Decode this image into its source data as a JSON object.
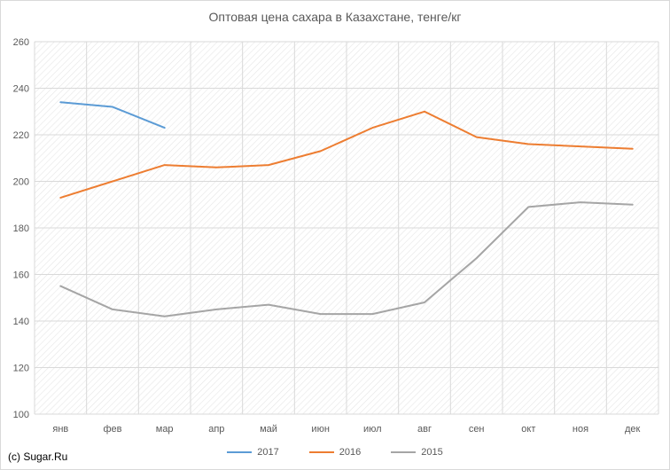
{
  "chart_data": {
    "type": "line",
    "title": "Оптовая цена сахара в Казахстане, тенге/кг",
    "categories": [
      "янв",
      "фев",
      "мар",
      "апр",
      "май",
      "июн",
      "июл",
      "авг",
      "сен",
      "окт",
      "ноя",
      "дек"
    ],
    "ylim": [
      100,
      260
    ],
    "yticks": [
      100,
      120,
      140,
      160,
      180,
      200,
      220,
      240,
      260
    ],
    "grid": true,
    "legend_position": "bottom",
    "series": [
      {
        "name": "2017",
        "color": "#5b9bd5",
        "values": [
          234,
          232,
          223,
          null,
          null,
          null,
          null,
          null,
          null,
          null,
          null,
          null
        ]
      },
      {
        "name": "2016",
        "color": "#ed7d31",
        "values": [
          193,
          200,
          207,
          206,
          207,
          213,
          223,
          230,
          219,
          216,
          215,
          214
        ]
      },
      {
        "name": "2015",
        "color": "#a5a5a5",
        "values": [
          155,
          145,
          142,
          145,
          147,
          143,
          143,
          148,
          167,
          189,
          191,
          190
        ]
      }
    ]
  },
  "watermark": "(c) Sugar.Ru"
}
